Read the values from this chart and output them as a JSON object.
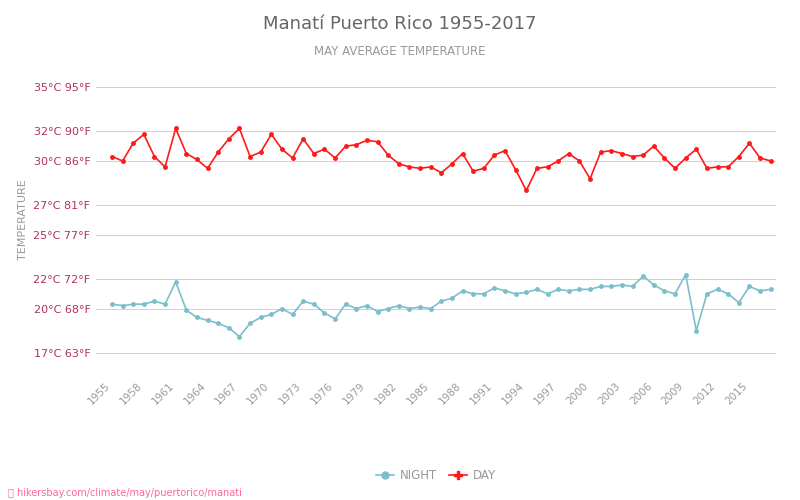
{
  "title": "Manatí Puerto Rico 1955-2017",
  "subtitle": "MAY AVERAGE TEMPERATURE",
  "ylabel": "TEMPERATURE",
  "watermark": "hikersbay.com/climate/may/puertorico/manati",
  "years": [
    1955,
    1956,
    1957,
    1958,
    1959,
    1960,
    1961,
    1962,
    1963,
    1964,
    1965,
    1966,
    1967,
    1968,
    1969,
    1970,
    1971,
    1972,
    1973,
    1974,
    1975,
    1976,
    1977,
    1978,
    1979,
    1980,
    1981,
    1982,
    1983,
    1984,
    1985,
    1986,
    1987,
    1988,
    1989,
    1990,
    1991,
    1992,
    1993,
    1994,
    1995,
    1996,
    1997,
    1998,
    1999,
    2000,
    2001,
    2002,
    2003,
    2004,
    2005,
    2006,
    2007,
    2008,
    2009,
    2010,
    2011,
    2012,
    2013,
    2014,
    2015,
    2016,
    2017
  ],
  "day_temps": [
    30.3,
    30.0,
    31.2,
    31.8,
    30.3,
    29.6,
    32.2,
    30.5,
    30.1,
    29.5,
    30.6,
    31.5,
    32.2,
    30.3,
    30.6,
    31.8,
    30.8,
    30.2,
    31.5,
    30.5,
    30.8,
    30.2,
    31.0,
    31.1,
    31.4,
    31.3,
    30.4,
    29.8,
    29.6,
    29.5,
    29.6,
    29.2,
    29.8,
    30.5,
    29.3,
    29.5,
    30.4,
    30.7,
    29.4,
    28.0,
    29.5,
    29.6,
    30.0,
    30.5,
    30.0,
    28.8,
    30.6,
    30.7,
    30.5,
    30.3,
    30.4,
    31.0,
    30.2,
    29.5,
    30.2,
    30.8,
    29.5,
    29.6,
    29.6,
    30.3,
    31.2,
    30.2,
    30.0
  ],
  "night_temps": [
    20.3,
    20.2,
    20.3,
    20.3,
    20.5,
    20.3,
    21.8,
    19.9,
    19.4,
    19.2,
    19.0,
    18.7,
    18.1,
    19.0,
    19.4,
    19.6,
    20.0,
    19.6,
    20.5,
    20.3,
    19.7,
    19.3,
    20.3,
    20.0,
    20.2,
    19.8,
    20.0,
    20.2,
    20.0,
    20.1,
    20.0,
    20.5,
    20.7,
    21.2,
    21.0,
    21.0,
    21.4,
    21.2,
    21.0,
    21.1,
    21.3,
    21.0,
    21.3,
    21.2,
    21.3,
    21.3,
    21.5,
    21.5,
    21.6,
    21.5,
    22.2,
    21.6,
    21.2,
    21.0,
    22.3,
    18.5,
    21.0,
    21.3,
    21.0,
    20.4,
    21.5,
    21.2,
    21.3
  ],
  "day_color": "#ff1a1a",
  "night_color": "#7bbfcc",
  "bg_color": "#ffffff",
  "grid_color": "#d0d0d0",
  "title_color": "#666666",
  "subtitle_color": "#999999",
  "ylabel_color": "#999999",
  "tick_color_y": "#b03060",
  "tick_color_x": "#999999",
  "yticks_c": [
    17,
    20,
    22,
    25,
    27,
    30,
    32,
    35
  ],
  "yticks_f": [
    63,
    68,
    72,
    77,
    81,
    86,
    90,
    95
  ],
  "ylim": [
    15.5,
    36.5
  ],
  "xtick_years": [
    1955,
    1958,
    1961,
    1964,
    1967,
    1970,
    1973,
    1976,
    1979,
    1982,
    1985,
    1988,
    1991,
    1994,
    1997,
    2000,
    2003,
    2006,
    2009,
    2012,
    2015
  ],
  "legend_night_label": "NIGHT",
  "legend_day_label": "DAY",
  "watermark_color": "#ff6699",
  "legend_text_color": "#999999"
}
